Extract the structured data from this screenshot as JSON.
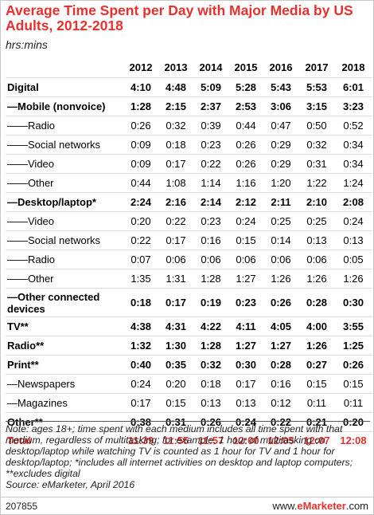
{
  "chart_data": {
    "type": "table",
    "title": "Average Time Spent per Day with Major Media by US Adults, 2012-2018",
    "subtitle": "hrs:mins",
    "columns": [
      "2012",
      "2013",
      "2014",
      "2015",
      "2016",
      "2017",
      "2018"
    ],
    "rows": [
      {
        "label": "Digital",
        "values": [
          "4:10",
          "4:48",
          "5:09",
          "5:28",
          "5:43",
          "5:53",
          "6:01"
        ],
        "style": "bold"
      },
      {
        "label": "—Mobile (nonvoice)",
        "values": [
          "1:28",
          "2:15",
          "2:37",
          "2:53",
          "3:06",
          "3:15",
          "3:23"
        ],
        "style": "bold"
      },
      {
        "label": "——Radio",
        "values": [
          "0:26",
          "0:32",
          "0:39",
          "0:44",
          "0:47",
          "0:50",
          "0:52"
        ],
        "style": "normal"
      },
      {
        "label": "——Social networks",
        "values": [
          "0:09",
          "0:18",
          "0:23",
          "0:26",
          "0:29",
          "0:32",
          "0:34"
        ],
        "style": "normal"
      },
      {
        "label": "——Video",
        "values": [
          "0:09",
          "0:17",
          "0:22",
          "0:26",
          "0:29",
          "0:31",
          "0:34"
        ],
        "style": "normal"
      },
      {
        "label": "——Other",
        "values": [
          "0:44",
          "1:08",
          "1:14",
          "1:16",
          "1:20",
          "1:22",
          "1:24"
        ],
        "style": "normal"
      },
      {
        "label": "—Desktop/laptop*",
        "values": [
          "2:24",
          "2:16",
          "2:14",
          "2:12",
          "2:11",
          "2:10",
          "2:08"
        ],
        "style": "bold"
      },
      {
        "label": "——Video",
        "values": [
          "0:20",
          "0:22",
          "0:23",
          "0:24",
          "0:25",
          "0:25",
          "0:24"
        ],
        "style": "normal"
      },
      {
        "label": "——Social networks",
        "values": [
          "0:22",
          "0:17",
          "0:16",
          "0:15",
          "0:14",
          "0:13",
          "0:13"
        ],
        "style": "normal"
      },
      {
        "label": "——Radio",
        "values": [
          "0:07",
          "0:06",
          "0:06",
          "0:06",
          "0:06",
          "0:06",
          "0:05"
        ],
        "style": "normal"
      },
      {
        "label": "——Other",
        "values": [
          "1:35",
          "1:31",
          "1:28",
          "1:27",
          "1:26",
          "1:26",
          "1:26"
        ],
        "style": "normal"
      },
      {
        "label": "—Other connected devices",
        "values": [
          "0:18",
          "0:17",
          "0:19",
          "0:23",
          "0:26",
          "0:28",
          "0:30"
        ],
        "style": "bold-tall"
      },
      {
        "label": "TV**",
        "values": [
          "4:38",
          "4:31",
          "4:22",
          "4:11",
          "4:05",
          "4:00",
          "3:55"
        ],
        "style": "bold"
      },
      {
        "label": "Radio**",
        "values": [
          "1:32",
          "1:30",
          "1:28",
          "1:27",
          "1:27",
          "1:26",
          "1:25"
        ],
        "style": "bold"
      },
      {
        "label": "Print**",
        "values": [
          "0:40",
          "0:35",
          "0:32",
          "0:30",
          "0:28",
          "0:27",
          "0:26"
        ],
        "style": "bold"
      },
      {
        "label": "—Newspapers",
        "values": [
          "0:24",
          "0:20",
          "0:18",
          "0:17",
          "0:16",
          "0:15",
          "0:15"
        ],
        "style": "normal"
      },
      {
        "label": "—Magazines",
        "values": [
          "0:17",
          "0:15",
          "0:13",
          "0:13",
          "0:12",
          "0:11",
          "0:11"
        ],
        "style": "normal"
      },
      {
        "label": "Other**",
        "values": [
          "0:38",
          "0:31",
          "0:26",
          "0:24",
          "0:22",
          "0:21",
          "0:20"
        ],
        "style": "bold"
      },
      {
        "label": "Total",
        "values": [
          "11:39",
          "11:55",
          "11:57",
          "12:00",
          "12:05",
          "12:07",
          "12:08"
        ],
        "style": "total"
      }
    ],
    "note": "Note: ages 18+; time spent with each medium includes all time spent with that medium, regardless of multitasking; for example, 1 hour of multitasking on desktop/laptop while watching TV is counted as 1 hour for TV and 1 hour for desktop/laptop; *includes all internet activities on desktop and laptop computers; **excludes digital",
    "source": "Source: eMarketer, April 2016"
  },
  "footer": {
    "chart_id": "207855",
    "brand_prefix": "www.",
    "brand_name": "eMarketer",
    "brand_suffix": ".com"
  },
  "colors": {
    "title": "#e8312f",
    "total": "#e8312f",
    "rule": "#d9d9d9"
  }
}
